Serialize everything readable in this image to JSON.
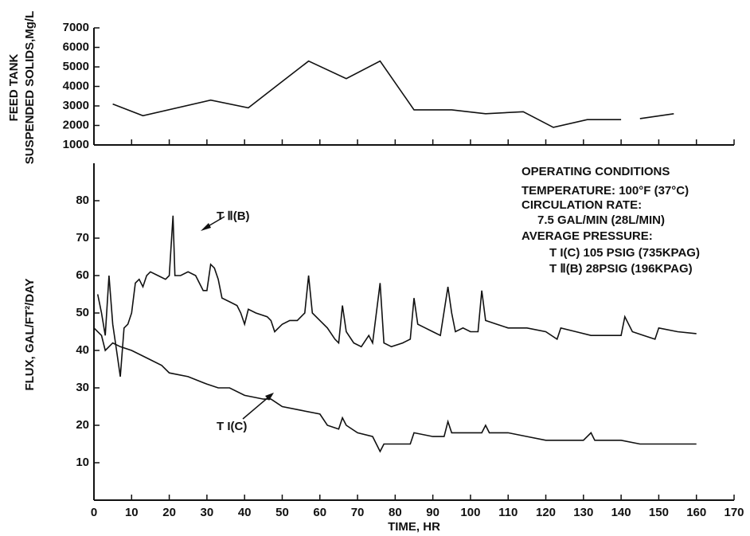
{
  "chart_data": [
    {
      "type": "line",
      "ylabel": [
        "FEED TANK",
        "SUSPENDED SOLIDS,Mg/L"
      ],
      "xlim": [
        0,
        170
      ],
      "xticks": [
        0,
        10,
        20,
        30,
        40,
        50,
        60,
        70,
        80,
        90,
        100,
        110,
        120,
        130,
        140,
        150,
        160,
        170
      ],
      "ylim": [
        1000,
        7000
      ],
      "yticks": [
        1000,
        2000,
        3000,
        4000,
        5000,
        6000,
        7000
      ],
      "series": [
        {
          "color": "#111111",
          "x": [
            5,
            13,
            31,
            41,
            49,
            57,
            67,
            76,
            85,
            95,
            104,
            114,
            122,
            131,
            140,
            142,
            145,
            154
          ],
          "values": [
            3100,
            2500,
            3300,
            2900,
            4100,
            5300,
            4400,
            5300,
            2800,
            2800,
            2600,
            2700,
            1900,
            2300,
            2300,
            null,
            2350,
            2600
          ]
        }
      ]
    },
    {
      "type": "line",
      "xlabel": "TIME, HR",
      "ylabel": [
        "FLUX, GAL/FT²/DAY"
      ],
      "xlim": [
        0,
        170
      ],
      "xticks": [
        0,
        10,
        20,
        30,
        40,
        50,
        60,
        70,
        80,
        90,
        100,
        110,
        120,
        130,
        140,
        150,
        160,
        170
      ],
      "ylim": [
        0,
        90
      ],
      "yticks": [
        10,
        20,
        30,
        40,
        50,
        60,
        70,
        80
      ],
      "series": [
        {
          "name": "T Ⅱ(B)",
          "color": "#111111",
          "x": [
            1,
            2,
            3,
            4,
            5,
            6,
            7,
            8,
            9,
            10,
            11,
            12,
            13,
            14,
            15,
            17,
            19,
            20,
            21,
            21.5,
            23,
            25,
            27,
            29,
            30,
            31,
            32,
            33,
            34,
            36,
            38,
            39,
            40,
            41,
            43,
            46,
            47,
            48,
            50,
            52,
            54,
            56,
            57,
            58,
            60,
            62,
            64,
            65,
            66,
            67,
            69,
            71,
            73,
            74,
            76,
            77,
            79,
            82,
            84,
            85,
            86,
            88,
            90,
            92,
            94,
            95,
            96,
            98,
            100,
            102,
            103,
            104,
            107,
            110,
            115,
            120,
            123,
            124,
            128,
            132,
            136,
            140,
            141,
            143,
            146,
            149,
            150,
            155,
            160
          ],
          "values": [
            55,
            50,
            44,
            60,
            47,
            40,
            33,
            46,
            47,
            50,
            58,
            59,
            57,
            60,
            61,
            60,
            59,
            60,
            76,
            60,
            60,
            61,
            60,
            56,
            56,
            63,
            62,
            59,
            54,
            53,
            52,
            50,
            47,
            51,
            50,
            49,
            48,
            45,
            47,
            48,
            48,
            50,
            60,
            50,
            48,
            46,
            43,
            42,
            52,
            45,
            42,
            41,
            44,
            42,
            58,
            42,
            41,
            42,
            43,
            54,
            47,
            46,
            45,
            44,
            57,
            50,
            45,
            46,
            45,
            45,
            56,
            48,
            47,
            46,
            46,
            45,
            43,
            46,
            45,
            44,
            44,
            44,
            49,
            45,
            44,
            43,
            46,
            45,
            44.5
          ]
        },
        {
          "name": "T I(C)",
          "color": "#111111",
          "x": [
            0,
            2,
            3,
            5,
            7,
            10,
            14,
            18,
            20,
            25,
            30,
            33,
            36,
            40,
            45,
            47,
            50,
            55,
            60,
            62,
            65,
            66,
            67,
            70,
            74,
            76,
            77,
            84,
            85,
            90,
            93,
            94,
            95,
            100,
            103,
            104,
            105,
            110,
            115,
            120,
            125,
            130,
            132,
            133,
            140,
            145,
            150,
            155,
            160
          ],
          "values": [
            46,
            44,
            40,
            42,
            41,
            40,
            38,
            36,
            34,
            33,
            31,
            30,
            30,
            28,
            27,
            27,
            25,
            24,
            23,
            20,
            19,
            22,
            20,
            18,
            17,
            13,
            15,
            15,
            18,
            17,
            17,
            21,
            18,
            18,
            18,
            20,
            18,
            18,
            17,
            16,
            16,
            16,
            18,
            16,
            16,
            15,
            15,
            15,
            15
          ]
        }
      ],
      "annotations": [
        "OPERATING CONDITIONS",
        "TEMPERATURE: 100°F (37°C)",
        "CIRCULATION RATE:",
        "7.5 GAL/MIN (28L/MIN)",
        "AVERAGE PRESSURE:",
        "T I(C) 105 PSIG (735KPAG)",
        "T Ⅱ(B) 28PSIG (196KPAG)"
      ]
    }
  ]
}
